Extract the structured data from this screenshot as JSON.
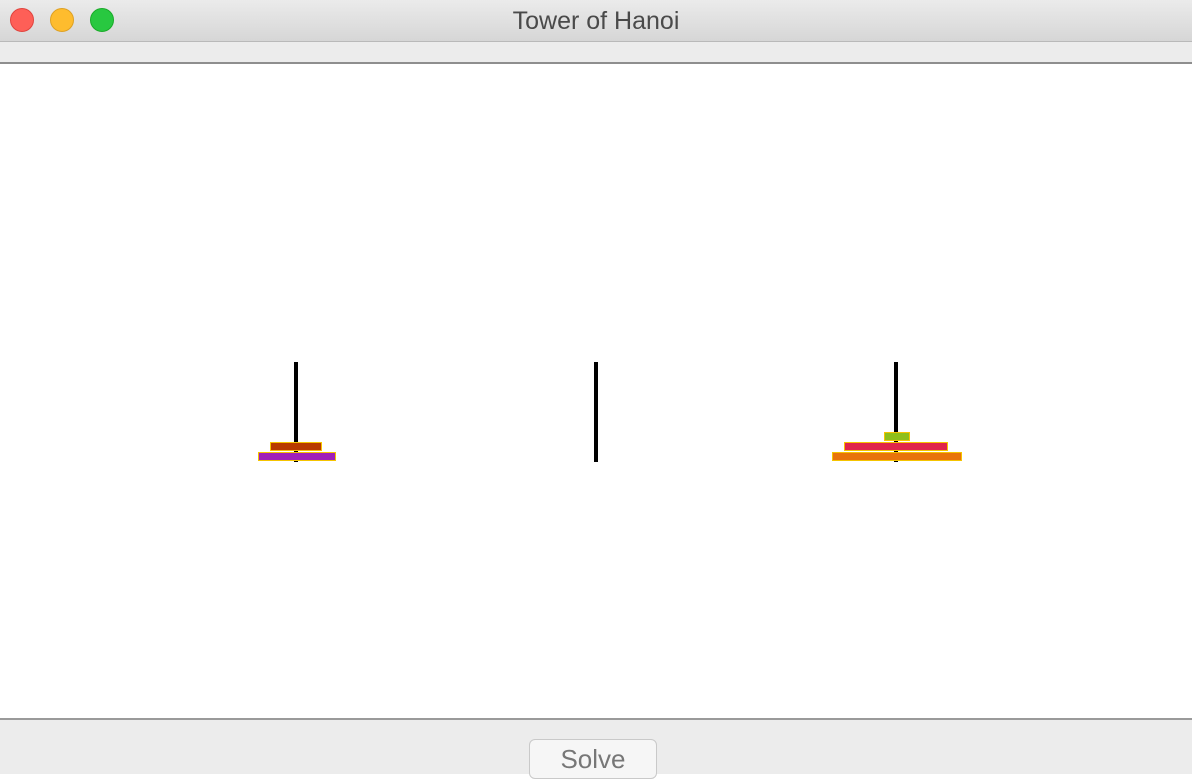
{
  "window": {
    "title": "Tower of Hanoi"
  },
  "controls": {
    "solve_label": "Solve"
  },
  "game": {
    "peg_count": 3,
    "pegs": [
      {
        "name": "left",
        "disks_bottom_to_top": [
          {
            "size_rank": 3,
            "color": "#a01fb8"
          },
          {
            "size_rank": 2,
            "color": "#b83a00"
          }
        ]
      },
      {
        "name": "middle",
        "disks_bottom_to_top": []
      },
      {
        "name": "right",
        "disks_bottom_to_top": [
          {
            "size_rank": 6,
            "color": "#e8730a"
          },
          {
            "size_rank": 5,
            "color": "#e0244a"
          },
          {
            "size_rank": 1,
            "color": "#8fbf1a"
          }
        ]
      }
    ],
    "disk_border_color": "#f5c400",
    "peg_color": "#000000"
  }
}
